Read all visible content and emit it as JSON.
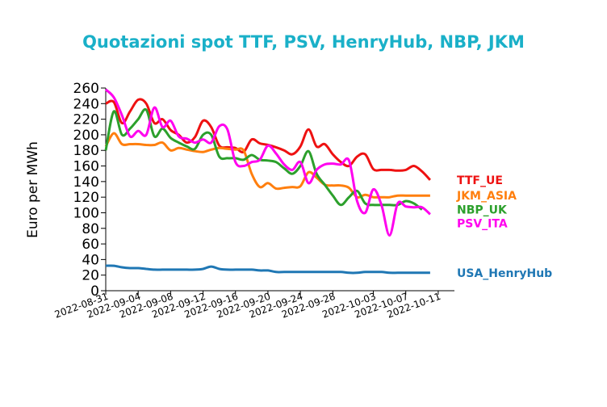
{
  "chart_data": {
    "type": "line",
    "title": "Quotazioni spot TTF, PSV, HenryHub, NBP, JKM",
    "title_color": "#1ab0c8",
    "xlabel": "",
    "ylabel": "Euro per MWh",
    "ylim": [
      0,
      260
    ],
    "y_ticks": [
      "0",
      "20",
      "40",
      "60",
      "80",
      "100",
      "120",
      "140",
      "160",
      "180",
      "200",
      "220",
      "240",
      "260"
    ],
    "x_ticks": [
      "2022-08-31",
      "2022-09-04",
      "2022-09-08",
      "2022-09-12",
      "2022-09-16",
      "2022-09-20",
      "2022-09-24",
      "2022-09-28",
      "2022-10-03",
      "2022-10-07",
      "2022-10-11"
    ],
    "x": [
      "2022-08-31",
      "2022-09-01",
      "2022-09-02",
      "2022-09-03",
      "2022-09-04",
      "2022-09-05",
      "2022-09-06",
      "2022-09-07",
      "2022-09-08",
      "2022-09-09",
      "2022-09-10",
      "2022-09-11",
      "2022-09-12",
      "2022-09-13",
      "2022-09-14",
      "2022-09-15",
      "2022-09-16",
      "2022-09-17",
      "2022-09-18",
      "2022-09-19",
      "2022-09-20",
      "2022-09-21",
      "2022-09-22",
      "2022-09-23",
      "2022-09-24",
      "2022-09-25",
      "2022-09-26",
      "2022-09-27",
      "2022-09-28",
      "2022-09-29",
      "2022-09-30",
      "2022-10-01",
      "2022-10-02",
      "2022-10-03",
      "2022-10-04",
      "2022-10-05",
      "2022-10-06",
      "2022-10-07",
      "2022-10-08",
      "2022-10-09",
      "2022-10-10",
      "2022-10-11",
      "2022-10-12",
      "2022-10-13"
    ],
    "series": [
      {
        "name": "TTF_UE",
        "color": "#ee1111",
        "values": [
          240,
          242,
          215,
          230,
          245,
          240,
          215,
          220,
          206,
          200,
          190,
          197,
          218,
          210,
          186,
          184,
          183,
          178,
          194,
          189,
          187,
          184,
          180,
          175,
          185,
          207,
          185,
          188,
          175,
          165,
          160,
          172,
          175,
          156,
          155,
          155,
          154,
          155,
          160,
          153,
          142,
          null,
          null,
          null
        ]
      },
      {
        "name": "JKM_ASIA",
        "color": "#ff7f0e",
        "values": [
          185,
          202,
          188,
          188,
          188,
          187,
          187,
          190,
          180,
          183,
          181,
          179,
          178,
          181,
          183,
          182,
          181,
          180,
          150,
          133,
          138,
          131,
          132,
          133,
          134,
          152,
          145,
          136,
          135,
          135,
          132,
          120,
          123,
          120,
          120,
          120,
          122,
          122,
          122,
          122,
          122,
          null,
          null,
          null
        ]
      },
      {
        "name": "NBP_UK",
        "color": "#2ca02c",
        "values": [
          180,
          230,
          200,
          208,
          220,
          232,
          198,
          208,
          196,
          190,
          185,
          182,
          200,
          200,
          172,
          170,
          170,
          168,
          174,
          168,
          167,
          165,
          157,
          150,
          160,
          179,
          150,
          136,
          122,
          110,
          120,
          128,
          112,
          110,
          110,
          110,
          110,
          115,
          112,
          104,
          null,
          null,
          null,
          null
        ]
      },
      {
        "name": "PSV_ITA",
        "color": "#ff00ee",
        "values": [
          258,
          248,
          225,
          198,
          205,
          200,
          235,
          210,
          218,
          198,
          195,
          190,
          194,
          190,
          211,
          207,
          165,
          160,
          165,
          168,
          186,
          176,
          162,
          155,
          165,
          138,
          155,
          162,
          163,
          162,
          167,
          115,
          100,
          130,
          110,
          71,
          112,
          108,
          107,
          107,
          98,
          null,
          null,
          null
        ]
      },
      {
        "name": "USA_HenryHub",
        "color": "#1f77b4",
        "values": [
          32,
          32,
          30,
          29,
          29,
          28,
          27,
          27,
          27,
          27,
          27,
          27,
          28,
          31,
          28,
          27,
          27,
          27,
          27,
          26,
          26,
          24,
          24,
          24,
          24,
          24,
          24,
          24,
          24,
          24,
          23,
          23,
          24,
          24,
          24,
          23,
          23,
          23,
          23,
          23,
          23,
          null,
          null,
          null
        ]
      }
    ]
  }
}
